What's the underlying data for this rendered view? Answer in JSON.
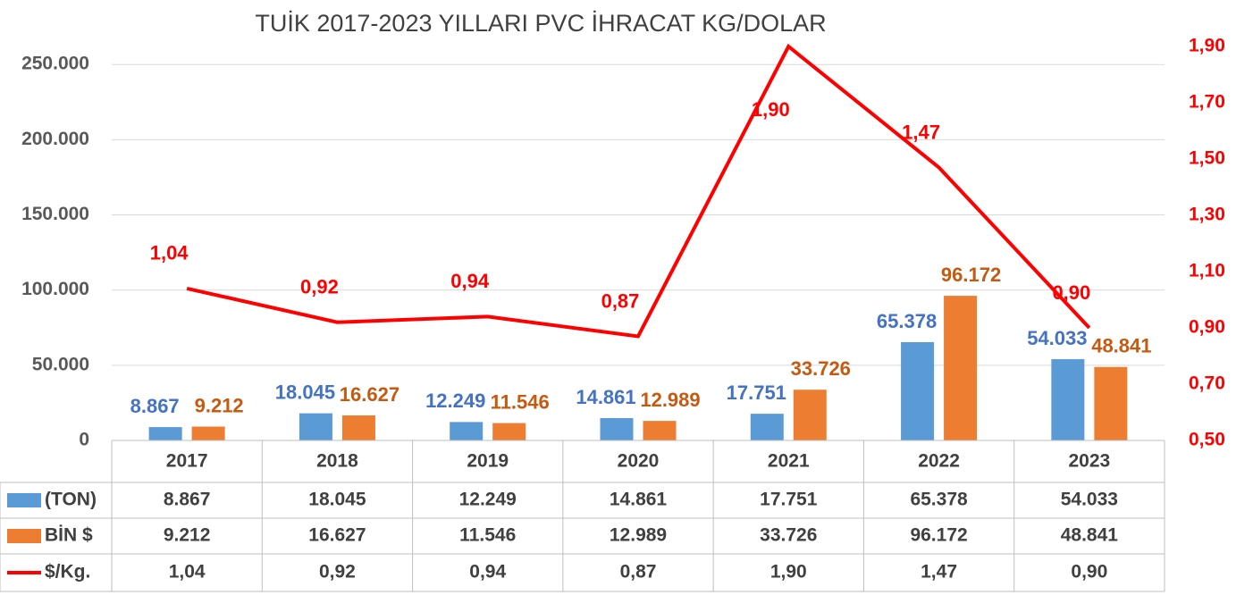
{
  "chart_data": {
    "type": "bar-line",
    "title": "TUİK 2017-2023 YILLARI PVC İHRACAT KG/DOLAR",
    "categories": [
      "2017",
      "2018",
      "2019",
      "2020",
      "2021",
      "2022",
      "2023"
    ],
    "series": [
      {
        "name": "(TON)",
        "color": "#5b9bd5",
        "type": "bar",
        "values": [
          8867,
          18045,
          12249,
          14861,
          17751,
          65378,
          54033
        ],
        "value_labels": [
          "8.867",
          "18.045",
          "12.249",
          "14.861",
          "17.751",
          "65.378",
          "54.033"
        ]
      },
      {
        "name": "BİN $",
        "color": "#ed7d31",
        "type": "bar",
        "values": [
          9212,
          16627,
          11546,
          12989,
          33726,
          96172,
          48841
        ],
        "value_labels": [
          "9.212",
          "16.627",
          "11.546",
          "12.989",
          "33.726",
          "96.172",
          "48.841"
        ]
      },
      {
        "name": "$/Kg.",
        "color": "#ff0000",
        "type": "line",
        "axis": "y2",
        "values": [
          1.04,
          0.92,
          0.94,
          0.87,
          1.9,
          1.47,
          0.9
        ],
        "value_labels": [
          "1,04",
          "0,92",
          "0,94",
          "0,87",
          "1,90",
          "1,47",
          "0,90"
        ]
      }
    ],
    "ylim": [
      0,
      262000
    ],
    "yticks": [
      0,
      {
        "value": 50000,
        "label": "50.000"
      },
      {
        "value": 100000,
        "label": "100.000"
      },
      {
        "value": 150000,
        "label": "150.000"
      },
      {
        "value": 200000,
        "label": "200.000"
      },
      {
        "value": 250000,
        "label": "250.000"
      }
    ],
    "y2lim": [
      0.5,
      1.9
    ],
    "y2ticks": [
      {
        "value": 0.5,
        "label": "0,50"
      },
      {
        "value": 0.7,
        "label": "0,70"
      },
      {
        "value": 0.9,
        "label": "0,90"
      },
      {
        "value": 1.1,
        "label": "1,10"
      },
      {
        "value": 1.3,
        "label": "1,30"
      },
      {
        "value": 1.5,
        "label": "1,50"
      },
      {
        "value": 1.7,
        "label": "1,70"
      },
      {
        "value": 1.9,
        "label": "1,90"
      }
    ],
    "grid": true,
    "data_table": true
  }
}
